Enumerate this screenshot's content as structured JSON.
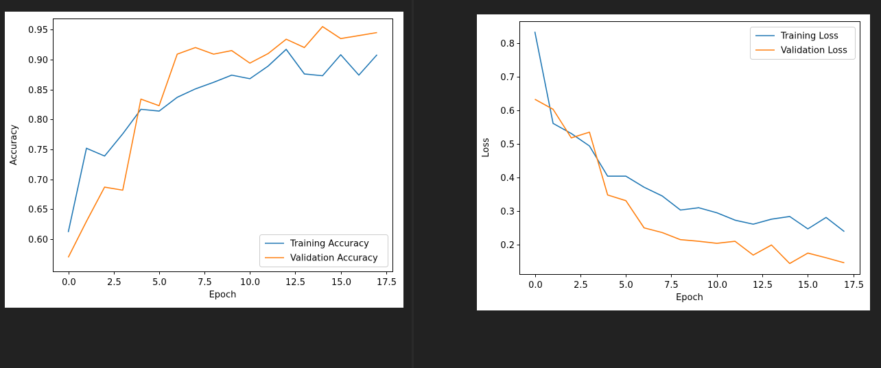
{
  "colors": {
    "background": "#222222",
    "card": "#ffffff",
    "training": "#1f77b4",
    "validation": "#ff7f0e"
  },
  "chart_data": [
    {
      "type": "line",
      "xlabel": "Epoch",
      "ylabel": "Accuracy",
      "xlim": [
        -0.85,
        17.85
      ],
      "ylim": [
        0.5465,
        0.9685
      ],
      "x_ticks": [
        0,
        2.5,
        5,
        7.5,
        10,
        12.5,
        15,
        17.5
      ],
      "x_tick_labels": [
        "0.0",
        "2.5",
        "5.0",
        "7.5",
        "10.0",
        "12.5",
        "15.0",
        "17.5"
      ],
      "y_ticks": [
        0.6,
        0.65,
        0.7,
        0.75,
        0.8,
        0.85,
        0.9,
        0.95
      ],
      "y_tick_labels": [
        "0.60",
        "0.65",
        "0.70",
        "0.75",
        "0.80",
        "0.85",
        "0.90",
        "0.95"
      ],
      "legend_position": "lower-right",
      "grid": false,
      "x": [
        0,
        1,
        2,
        3,
        4,
        5,
        6,
        7,
        8,
        9,
        10,
        11,
        12,
        13,
        14,
        15,
        16,
        17
      ],
      "series": [
        {
          "name": "Training Accuracy",
          "color": "#1f77b4",
          "values": [
            0.612,
            0.752,
            0.739,
            0.776,
            0.817,
            0.814,
            0.837,
            0.851,
            0.862,
            0.874,
            0.868,
            0.889,
            0.917,
            0.876,
            0.873,
            0.908,
            0.874,
            0.908
          ]
        },
        {
          "name": "Validation Accuracy",
          "color": "#ff7f0e",
          "values": [
            0.57,
            0.63,
            0.687,
            0.682,
            0.834,
            0.823,
            0.909,
            0.92,
            0.909,
            0.915,
            0.894,
            0.91,
            0.934,
            0.92,
            0.955,
            0.935,
            0.94,
            0.945
          ]
        }
      ]
    },
    {
      "type": "line",
      "xlabel": "Epoch",
      "ylabel": "Loss",
      "xlim": [
        -0.85,
        17.85
      ],
      "ylim": [
        0.1113,
        0.8643
      ],
      "x_ticks": [
        0,
        2.5,
        5,
        7.5,
        10,
        12.5,
        15,
        17.5
      ],
      "x_tick_labels": [
        "0.0",
        "2.5",
        "5.0",
        "7.5",
        "10.0",
        "12.5",
        "15.0",
        "17.5"
      ],
      "y_ticks": [
        0.2,
        0.3,
        0.4,
        0.5,
        0.6,
        0.7,
        0.8
      ],
      "y_tick_labels": [
        "0.2",
        "0.3",
        "0.4",
        "0.5",
        "0.6",
        "0.7",
        "0.8"
      ],
      "legend_position": "upper-right",
      "grid": false,
      "x": [
        0,
        1,
        2,
        3,
        4,
        5,
        6,
        7,
        8,
        9,
        10,
        11,
        12,
        13,
        14,
        15,
        16,
        17
      ],
      "series": [
        {
          "name": "Training Loss",
          "color": "#1f77b4",
          "values": [
            0.833,
            0.56,
            0.53,
            0.493,
            0.403,
            0.403,
            0.37,
            0.344,
            0.302,
            0.309,
            0.294,
            0.272,
            0.26,
            0.275,
            0.283,
            0.246,
            0.28,
            0.238
          ]
        },
        {
          "name": "Validation Loss",
          "color": "#ff7f0e",
          "values": [
            0.632,
            0.602,
            0.517,
            0.534,
            0.347,
            0.33,
            0.249,
            0.235,
            0.214,
            0.209,
            0.203,
            0.209,
            0.168,
            0.198,
            0.143,
            0.174,
            0.16,
            0.145
          ]
        }
      ]
    }
  ]
}
